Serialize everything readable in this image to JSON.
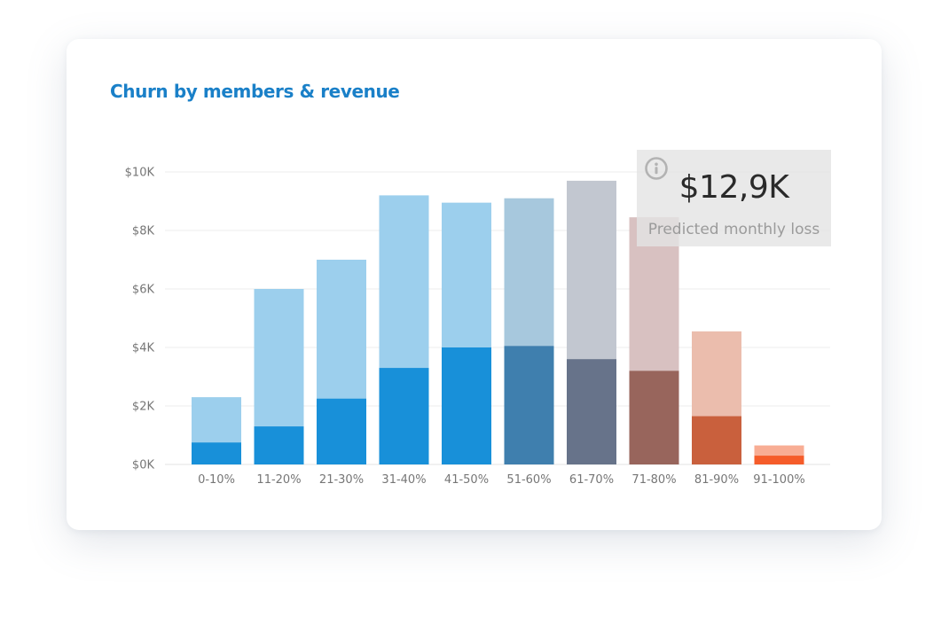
{
  "card": {
    "title": "Churn by members & revenue"
  },
  "kpi": {
    "value": "$12,9K",
    "caption": "Predicted monthly loss",
    "icon": "info-icon"
  },
  "chart_data": {
    "type": "bar",
    "title": "Churn by members & revenue",
    "xlabel": "",
    "ylabel": "",
    "ylim": [
      0,
      10000
    ],
    "y_ticks": [
      0,
      2000,
      4000,
      6000,
      8000,
      10000
    ],
    "y_tick_labels": [
      "$0K",
      "$2K",
      "$4K",
      "$6K",
      "$8K",
      "$10K"
    ],
    "grid": true,
    "categories": [
      "0-10%",
      "11-20%",
      "21-30%",
      "31-40%",
      "41-50%",
      "51-60%",
      "61-70%",
      "71-80%",
      "81-90%",
      "91-100%"
    ],
    "series": [
      {
        "values": [
          2300,
          6000,
          7000,
          9200,
          8950,
          9100,
          9700,
          8450,
          4550,
          650
        ],
        "colors": [
          "#9ccfed",
          "#9ccfed",
          "#9ccfed",
          "#9ccfed",
          "#9ccfed",
          "#a7c8dd",
          "#c2c7d0",
          "#d8c1c1",
          "#ebbdad",
          "#f8ad94"
        ]
      },
      {
        "values": [
          750,
          1300,
          2250,
          3300,
          4000,
          4050,
          3600,
          3200,
          1650,
          300
        ],
        "colors": [
          "#1890d9",
          "#1890d9",
          "#1890d9",
          "#1890d9",
          "#1890d9",
          "#3f7fae",
          "#67738a",
          "#98655c",
          "#c9603d",
          "#f55c2a"
        ]
      }
    ]
  }
}
